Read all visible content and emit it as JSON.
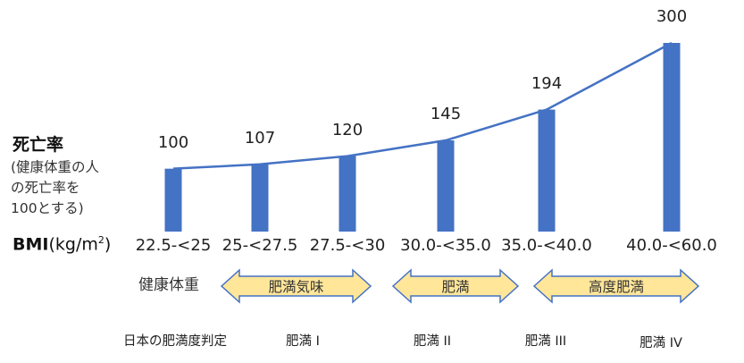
{
  "chart_data": {
    "type": "bar",
    "ylabel": {
      "title": "死亡率",
      "description": [
        "(健康体重の人",
        "の死亡率を",
        "100とする)"
      ]
    },
    "xlabel": {
      "main": "BMI",
      "unit": "(kg/m",
      "unit_sup": "2",
      "unit_close": ")"
    },
    "categories": [
      "22.5-<25",
      "25-<27.5",
      "27.5-<30",
      "30.0-<35.0",
      "35.0-<40.0",
      "40.0-<60.0"
    ],
    "values": [
      100,
      107,
      120,
      145,
      194,
      300
    ],
    "series": [
      {
        "values": [
          100,
          107,
          120,
          145,
          194,
          300
        ]
      }
    ],
    "trend_line": true,
    "bar_color": "#4472C4",
    "line_color": "#4472C4",
    "annotations": {
      "healthy_label": "健康体重",
      "arrows": [
        {
          "label": "肥満気味",
          "from_category": 1,
          "to_category": 2
        },
        {
          "label": "肥満",
          "from_category": 3,
          "to_category": 3
        },
        {
          "label": "高度肥満",
          "from_category": 4,
          "to_category": 5
        }
      ],
      "arrow_fill": "#FFE699",
      "arrow_stroke": "#4472C4"
    },
    "japan_obesity_row": {
      "title": "日本の肥満度判定",
      "labels": [
        "肥満 I",
        "肥満 II",
        "肥満 III",
        "肥満 IV"
      ]
    }
  }
}
